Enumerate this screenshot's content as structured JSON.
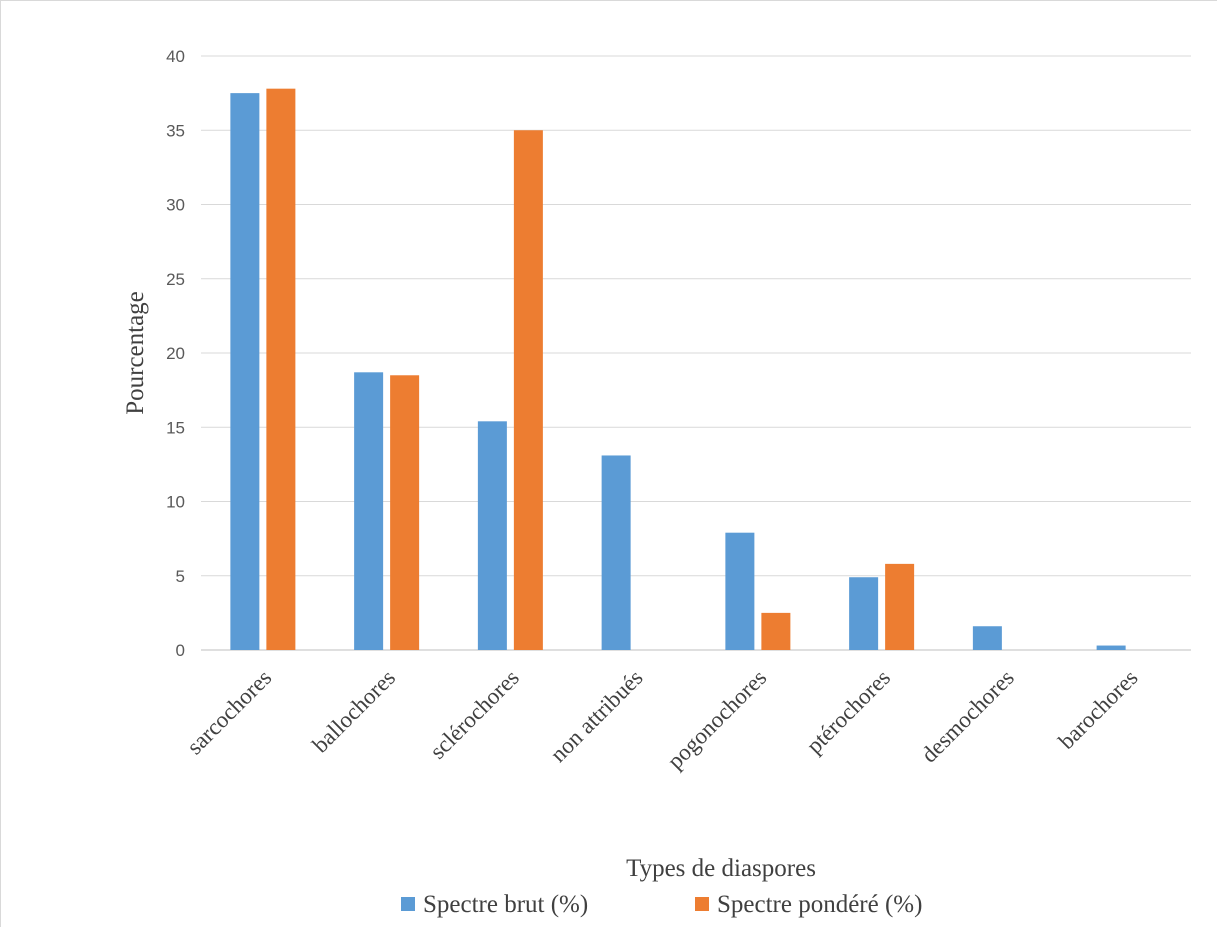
{
  "chart_data": {
    "type": "bar",
    "title": "",
    "xlabel": "Types de diaspores",
    "ylabel": "Pourcentage",
    "ylim": [
      0,
      40
    ],
    "yticks": [
      "0",
      "5",
      "10",
      "15",
      "20",
      "25",
      "30",
      "35",
      "40"
    ],
    "grid": true,
    "legend_position": "bottom",
    "categories": [
      "sarcochores",
      "ballochores",
      "sclérochores",
      "non attribués",
      "pogonochores",
      "ptérochores",
      "desmochores",
      "barochores"
    ],
    "series": [
      {
        "name": "Spectre brut (%)",
        "color": "#5B9BD5",
        "values": [
          37.5,
          18.7,
          15.4,
          13.1,
          7.9,
          4.9,
          1.6,
          0.3
        ]
      },
      {
        "name": "Spectre pondéré (%)",
        "color": "#ED7D31",
        "values": [
          37.8,
          18.5,
          35.0,
          0,
          2.5,
          5.8,
          0,
          0
        ]
      }
    ]
  }
}
